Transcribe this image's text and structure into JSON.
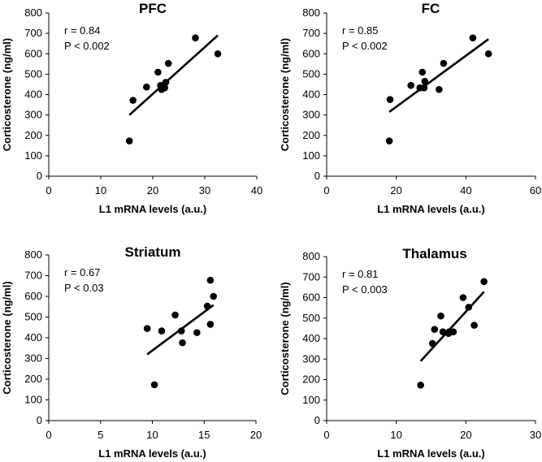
{
  "chart_data": [
    {
      "type": "scatter",
      "title": "PFC",
      "xlabel": "L1 mRNA levels (a.u.)",
      "ylabel": "Corticosterone (ng/ml)",
      "xlim": [
        0,
        40
      ],
      "ylim": [
        0,
        800
      ],
      "xticks": [
        "0",
        "10",
        "20",
        "30",
        "40"
      ],
      "yticks": [
        "0",
        "100",
        "200",
        "300",
        "400",
        "500",
        "600",
        "700",
        "800"
      ],
      "annotations": [
        "r = 0.84",
        "P < 0.002"
      ],
      "points": [
        [
          15.5,
          173
        ],
        [
          16.2,
          372
        ],
        [
          18.8,
          437
        ],
        [
          21.0,
          510
        ],
        [
          21.5,
          445
        ],
        [
          21.7,
          425
        ],
        [
          22.3,
          433
        ],
        [
          22.5,
          460
        ],
        [
          23.0,
          553
        ],
        [
          28.2,
          678
        ],
        [
          32.5,
          600
        ]
      ],
      "trendline": [
        [
          15.5,
          300
        ],
        [
          32.5,
          690
        ]
      ],
      "grid": false,
      "legend": "none"
    },
    {
      "type": "scatter",
      "title": "FC",
      "xlabel": "L1 mRNA levels (a.u.)",
      "ylabel": "Corticosterone (ng/ml)",
      "xlim": [
        0,
        60
      ],
      "ylim": [
        0,
        800
      ],
      "xticks": [
        "0",
        "20",
        "40",
        "60"
      ],
      "yticks": [
        "0",
        "100",
        "200",
        "300",
        "400",
        "500",
        "600",
        "700",
        "800"
      ],
      "annotations": [
        "r = 0.85",
        "P < 0.002"
      ],
      "points": [
        [
          18.0,
          173
        ],
        [
          18.2,
          376
        ],
        [
          24.2,
          445
        ],
        [
          26.8,
          433
        ],
        [
          27.5,
          510
        ],
        [
          28.0,
          433
        ],
        [
          28.2,
          465
        ],
        [
          32.3,
          425
        ],
        [
          33.6,
          553
        ],
        [
          42.0,
          678
        ],
        [
          46.5,
          600
        ]
      ],
      "trendline": [
        [
          18,
          315
        ],
        [
          46.5,
          672
        ]
      ],
      "grid": false,
      "legend": "none"
    },
    {
      "type": "scatter",
      "title": "Striatum",
      "xlabel": "L1 mRNA levels (a.u.)",
      "ylabel": "Corticosterone (ng/ml)",
      "xlim": [
        0,
        20
      ],
      "ylim": [
        0,
        800
      ],
      "xticks": [
        "0",
        "5",
        "10",
        "15",
        "20"
      ],
      "yticks": [
        "0",
        "100",
        "200",
        "300",
        "400",
        "500",
        "600",
        "700",
        "800"
      ],
      "annotations": [
        "r = 0.67",
        "P < 0.03"
      ],
      "points": [
        [
          9.5,
          445
        ],
        [
          10.2,
          173
        ],
        [
          10.9,
          433
        ],
        [
          12.2,
          510
        ],
        [
          12.8,
          433
        ],
        [
          12.9,
          376
        ],
        [
          14.3,
          425
        ],
        [
          15.3,
          553
        ],
        [
          15.6,
          678
        ],
        [
          15.6,
          465
        ],
        [
          15.9,
          600
        ]
      ],
      "trendline": [
        [
          9.5,
          320
        ],
        [
          15.9,
          558
        ]
      ],
      "grid": false,
      "legend": "none"
    },
    {
      "type": "scatter",
      "title": "Thalamus",
      "xlabel": "L1 mRNA levels (a.u.)",
      "ylabel": "Corticosterone (ng/ml)",
      "xlim": [
        0,
        30
      ],
      "ylim": [
        0,
        800
      ],
      "xticks": [
        "0",
        "10",
        "20",
        "30"
      ],
      "yticks": [
        "0",
        "100",
        "200",
        "300",
        "400",
        "500",
        "600",
        "700",
        "800"
      ],
      "annotations": [
        "r = 0.81",
        "P < 0.003"
      ],
      "points": [
        [
          13.5,
          173
        ],
        [
          15.2,
          376
        ],
        [
          15.5,
          445
        ],
        [
          16.4,
          510
        ],
        [
          16.7,
          433
        ],
        [
          17.5,
          425
        ],
        [
          17.6,
          433
        ],
        [
          18.2,
          433
        ],
        [
          19.6,
          600
        ],
        [
          20.4,
          553
        ],
        [
          21.2,
          465
        ],
        [
          22.6,
          678
        ]
      ],
      "trendline": [
        [
          13.5,
          290
        ],
        [
          22.6,
          628
        ]
      ],
      "grid": false,
      "legend": "none"
    }
  ]
}
